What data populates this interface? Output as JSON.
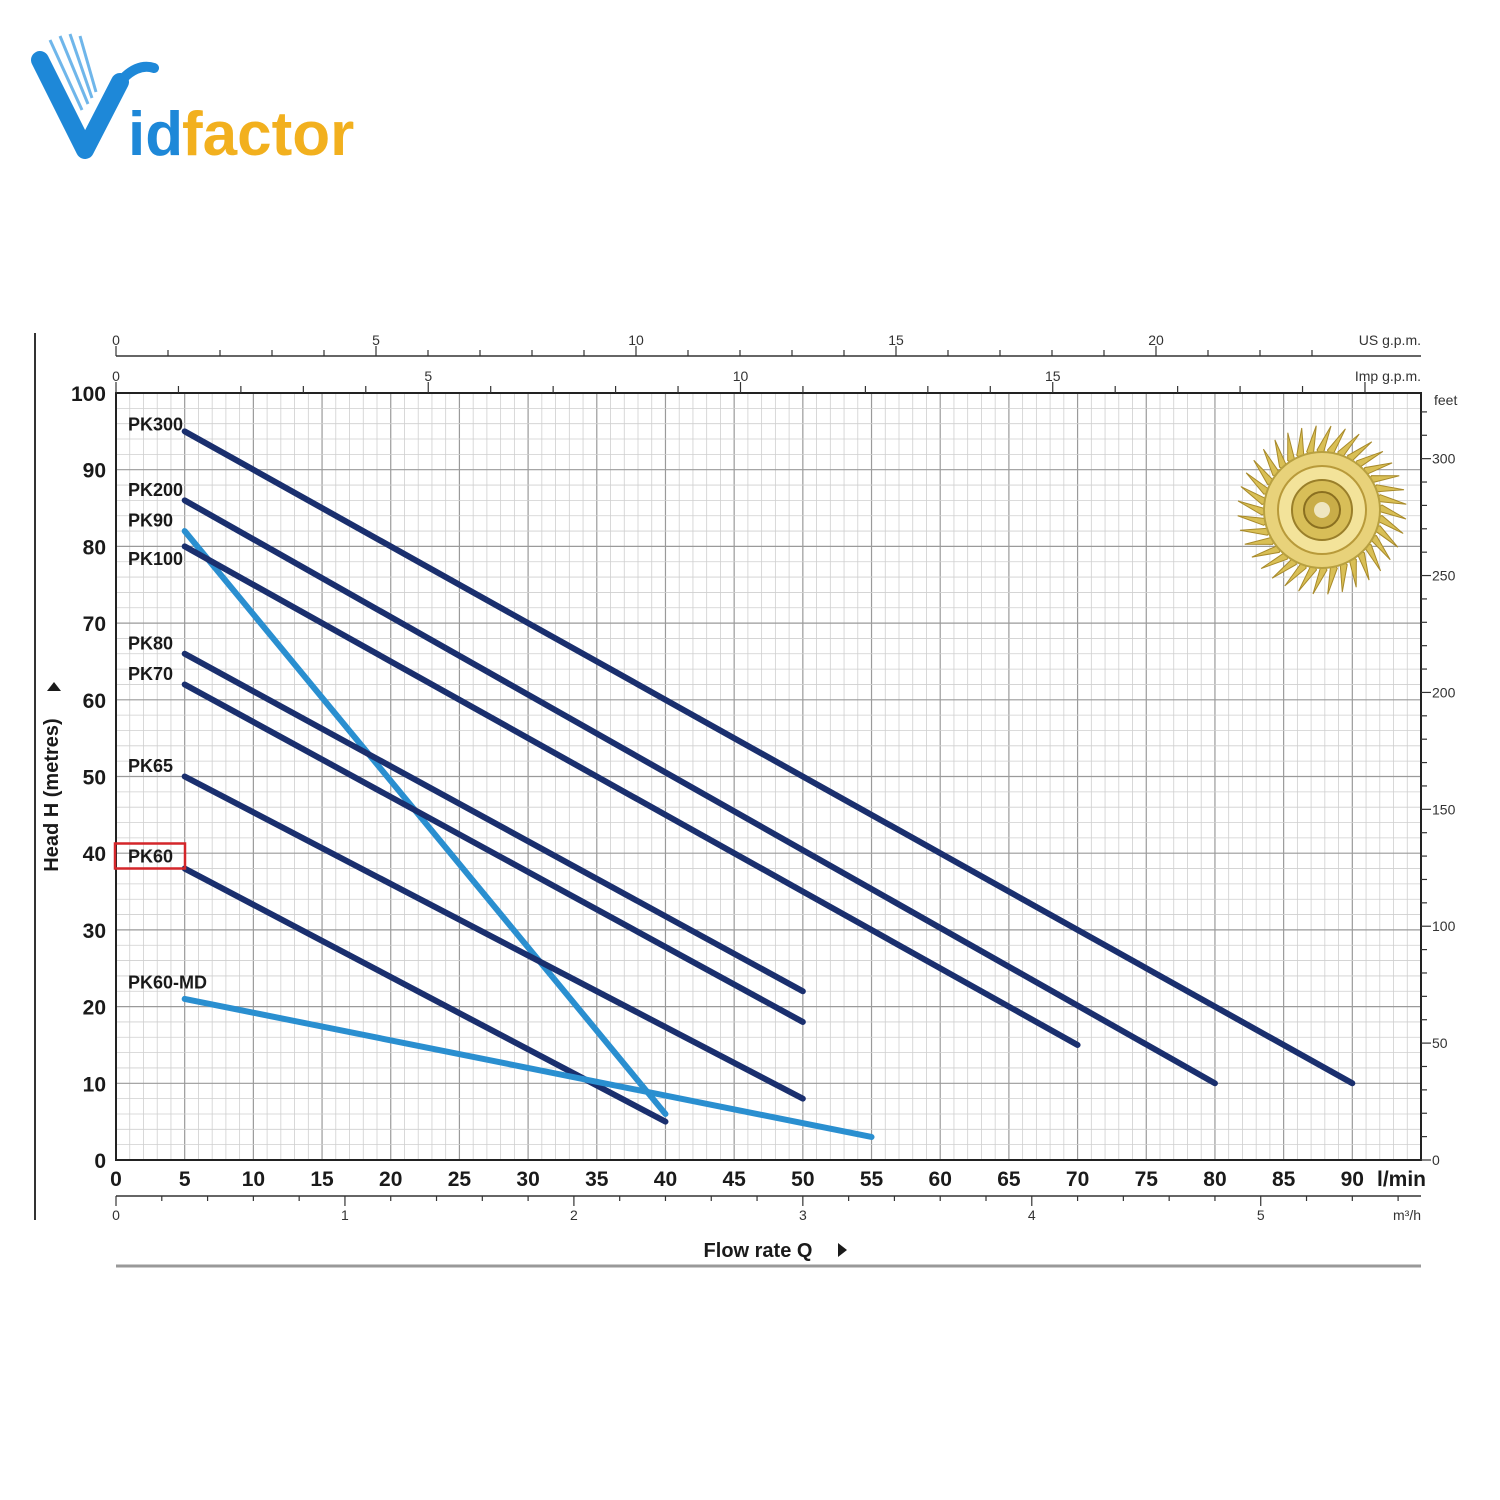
{
  "brand": {
    "name_part1": "V",
    "name_part2": "id",
    "name_part3": "factor",
    "colors": {
      "blue": "#1e88d8",
      "gold": "#f2b01e"
    }
  },
  "chart_data": {
    "type": "line",
    "xlabel": "Flow rate Q",
    "ylabel": "Head H (metres)",
    "x_unit": "l/min",
    "xlim": [
      0,
      95
    ],
    "ylim": [
      0,
      100
    ],
    "x_ticks": [
      0,
      5,
      10,
      15,
      20,
      25,
      30,
      35,
      40,
      45,
      50,
      55,
      60,
      65,
      70,
      75,
      80,
      85,
      90
    ],
    "y_ticks": [
      0,
      10,
      20,
      30,
      40,
      50,
      60,
      70,
      80,
      90,
      100
    ],
    "grid": true,
    "secondary_axes": {
      "us_gpm": {
        "label": "US g.p.m.",
        "ticks": [
          0,
          5,
          10,
          15,
          20
        ]
      },
      "imp_gpm": {
        "label": "Imp g.p.m.",
        "ticks": [
          0,
          5,
          10,
          15
        ]
      },
      "feet": {
        "label": "feet",
        "ticks": [
          0,
          50,
          100,
          150,
          200,
          250,
          300
        ]
      },
      "m3h": {
        "label": "m³/h",
        "ticks": [
          0,
          1,
          2,
          3,
          4,
          5
        ]
      }
    },
    "highlighted_series": "PK60",
    "series": [
      {
        "name": "PK300",
        "color": "#1a2f6e",
        "x": [
          5,
          90
        ],
        "y": [
          95,
          10
        ]
      },
      {
        "name": "PK200",
        "color": "#1a2f6e",
        "x": [
          5,
          80
        ],
        "y": [
          86,
          10
        ]
      },
      {
        "name": "PK90",
        "color": "#2a8fd0",
        "x": [
          5,
          40
        ],
        "y": [
          82,
          6
        ]
      },
      {
        "name": "PK100",
        "color": "#1a2f6e",
        "x": [
          5,
          70
        ],
        "y": [
          80,
          15
        ]
      },
      {
        "name": "PK80",
        "color": "#1a2f6e",
        "x": [
          5,
          50
        ],
        "y": [
          66,
          22
        ]
      },
      {
        "name": "PK70",
        "color": "#1a2f6e",
        "x": [
          5,
          50
        ],
        "y": [
          62,
          18
        ]
      },
      {
        "name": "PK65",
        "color": "#1a2f6e",
        "x": [
          5,
          50
        ],
        "y": [
          50,
          8
        ]
      },
      {
        "name": "PK60",
        "color": "#1a2f6e",
        "x": [
          5,
          40
        ],
        "y": [
          38,
          5
        ]
      },
      {
        "name": "PK60-MD",
        "color": "#2a8fd0",
        "x": [
          5,
          55
        ],
        "y": [
          21,
          3
        ]
      }
    ],
    "label_positions": {
      "PK300": 96,
      "PK200": 87.5,
      "PK90": 83.5,
      "PK100": 78.5,
      "PK80": 67.5,
      "PK70": 63.5,
      "PK65": 51.5,
      "PK60": 39.7,
      "PK60-MD": 23.3
    }
  }
}
